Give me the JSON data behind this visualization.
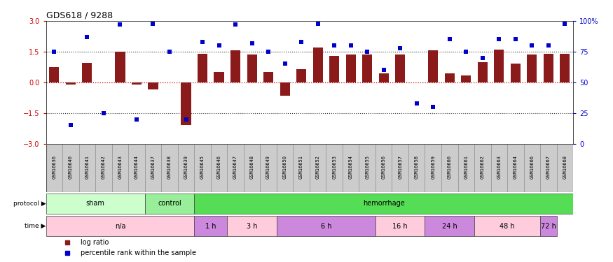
{
  "title": "GDS618 / 9288",
  "samples": [
    "GSM16636",
    "GSM16640",
    "GSM16641",
    "GSM16642",
    "GSM16643",
    "GSM16644",
    "GSM16637",
    "GSM16638",
    "GSM16639",
    "GSM16645",
    "GSM16646",
    "GSM16647",
    "GSM16648",
    "GSM16649",
    "GSM16650",
    "GSM16651",
    "GSM16652",
    "GSM16653",
    "GSM16654",
    "GSM16655",
    "GSM16656",
    "GSM16657",
    "GSM16658",
    "GSM16659",
    "GSM16660",
    "GSM16661",
    "GSM16662",
    "GSM16663",
    "GSM16664",
    "GSM16666",
    "GSM16667",
    "GSM16668"
  ],
  "log_ratio": [
    0.75,
    -0.12,
    0.95,
    0.0,
    1.5,
    -0.12,
    -0.35,
    0.0,
    -2.1,
    1.4,
    0.5,
    1.55,
    1.35,
    0.5,
    -0.65,
    0.65,
    1.7,
    1.3,
    1.35,
    1.35,
    0.45,
    1.35,
    0.0,
    1.55,
    0.45,
    0.35,
    1.0,
    1.6,
    0.9,
    1.35,
    1.4,
    1.4
  ],
  "percentile_rank": [
    75,
    15,
    87,
    25,
    97,
    20,
    98,
    75,
    20,
    83,
    80,
    97,
    82,
    75,
    65,
    83,
    98,
    80,
    80,
    75,
    60,
    78,
    33,
    30,
    85,
    75,
    70,
    85,
    85,
    80,
    80,
    98
  ],
  "bar_color": "#8B1A1A",
  "square_color": "#0000CC",
  "ylim": [
    -3,
    3
  ],
  "y2lim": [
    0,
    100
  ],
  "yticks": [
    -3,
    -1.5,
    0,
    1.5,
    3
  ],
  "y2ticks": [
    0,
    25,
    50,
    75,
    100
  ],
  "hline_color": "#CC0000",
  "dotted_color": "#333333",
  "bg_color": "#FFFFFF",
  "sample_box_color": "#CCCCCC",
  "sample_box_edge": "#888888",
  "protocol_groups": [
    {
      "label": "sham",
      "count": 6,
      "color": "#CCFFCC"
    },
    {
      "label": "control",
      "count": 3,
      "color": "#99EE99"
    },
    {
      "label": "hemorrhage",
      "count": 23,
      "color": "#55DD55"
    }
  ],
  "time_groups": [
    {
      "label": "n/a",
      "count": 9,
      "color": "#FFCCDD"
    },
    {
      "label": "1 h",
      "count": 2,
      "color": "#DD88EE"
    },
    {
      "label": "3 h",
      "count": 3,
      "color": "#FFCCDD"
    },
    {
      "label": "6 h",
      "count": 6,
      "color": "#DD88EE"
    },
    {
      "label": "16 h",
      "count": 3,
      "color": "#FFCCDD"
    },
    {
      "label": "24 h",
      "count": 3,
      "color": "#DD88EE"
    },
    {
      "label": "48 h",
      "count": 4,
      "color": "#FFCCDD"
    },
    {
      "label": "72 h",
      "count": 1,
      "color": "#DD88EE"
    }
  ],
  "legend_items": [
    {
      "label": "log ratio",
      "color": "#8B1A1A"
    },
    {
      "label": "percentile rank within the sample",
      "color": "#0000CC"
    }
  ]
}
